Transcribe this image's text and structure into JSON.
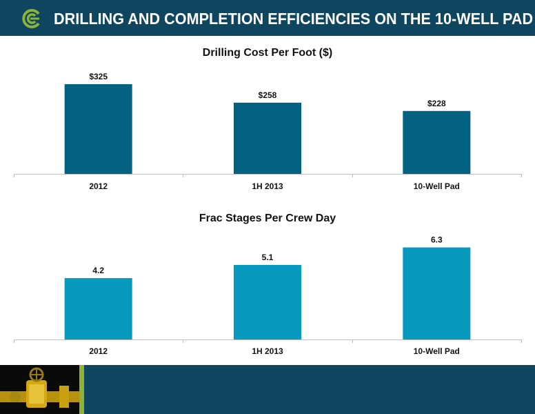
{
  "header": {
    "title": "DRILLING AND COMPLETION EFFICIENCIES ON THE 10-WELL PAD"
  },
  "colors": {
    "header_bg": "#0e4660",
    "accent_green": "#8db33a",
    "bar_dark": "#03627f",
    "bar_light": "#0899be"
  },
  "chart_data": [
    {
      "type": "bar",
      "title": "Drilling Cost Per Foot ($)",
      "categories": [
        "2012",
        "1H 2013",
        "10-Well Pad"
      ],
      "values": [
        325,
        258,
        228
      ],
      "labels": [
        "$325",
        "$258",
        "$228"
      ],
      "ylim": [
        0,
        350
      ],
      "grid": false,
      "color": "#03627f"
    },
    {
      "type": "bar",
      "title": "Frac Stages Per Crew Day",
      "categories": [
        "2012",
        "1H 2013",
        "10-Well Pad"
      ],
      "values": [
        4.2,
        5.1,
        6.3
      ],
      "labels": [
        "4.2",
        "5.1",
        "6.3"
      ],
      "ylim": [
        0,
        6.8
      ],
      "grid": false,
      "color": "#0899be"
    }
  ]
}
